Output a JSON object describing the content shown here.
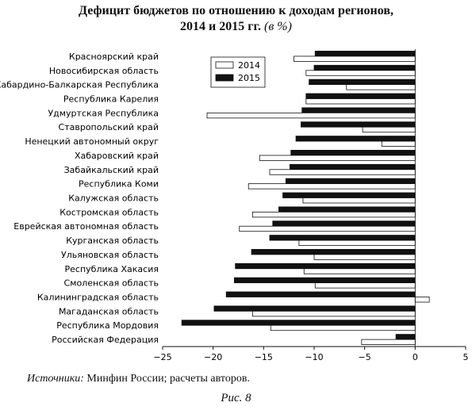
{
  "title": {
    "line1": "Дефицит бюджетов по отношению к доходам регионов,",
    "line2_main": "2014 и 2015 гг.",
    "line2_unit": "(в %)"
  },
  "source": {
    "label": "Источники:",
    "text": "Минфин России; расчеты авторов."
  },
  "figure_caption": "Рис. 8",
  "colors": {
    "series_2014": "#ffffff",
    "series_2015": "#111111",
    "stroke": "#111111"
  },
  "chart_data": {
    "type": "bar",
    "orientation": "horizontal",
    "categories": [
      "Красноярский край",
      "Новосибирская область",
      "Кабардино-Балкарская Республика",
      "Республика Карелия",
      "Удмуртская Республика",
      "Ставропольский край",
      "Ненецкий автономный округ",
      "Хабаровский край",
      "Забайкальский край",
      "Республика Коми",
      "Калужская область",
      "Костромская область",
      "Еврейская автономная область",
      "Курганская область",
      "Ульяновская область",
      "Республика Хакасия",
      "Смоленская область",
      "Калининградская область",
      "Магаданская область",
      "Республика Мордовия",
      "Российская Федерация"
    ],
    "series": [
      {
        "name": "2014",
        "values": [
          -12.0,
          -10.8,
          -6.8,
          -10.8,
          -20.6,
          -5.2,
          -3.3,
          -15.4,
          -14.4,
          -16.5,
          -11.1,
          -16.1,
          -17.4,
          -11.5,
          -10.0,
          -11.0,
          -9.9,
          1.4,
          -16.1,
          -14.3,
          -5.3
        ]
      },
      {
        "name": "2015",
        "values": [
          -9.9,
          -10.0,
          -10.5,
          -10.8,
          -11.2,
          -11.3,
          -11.8,
          -12.3,
          -12.4,
          -12.8,
          -13.1,
          -13.5,
          -14.1,
          -14.4,
          -16.2,
          -17.8,
          -17.9,
          -18.7,
          -19.9,
          -23.1,
          -1.9
        ]
      }
    ],
    "xlim": [
      -25,
      5
    ],
    "xticks": [
      -25,
      -20,
      -15,
      -10,
      -5,
      0,
      5
    ],
    "legend": {
      "position": "top-left",
      "entries": [
        "2014",
        "2015"
      ]
    },
    "grid": false
  }
}
